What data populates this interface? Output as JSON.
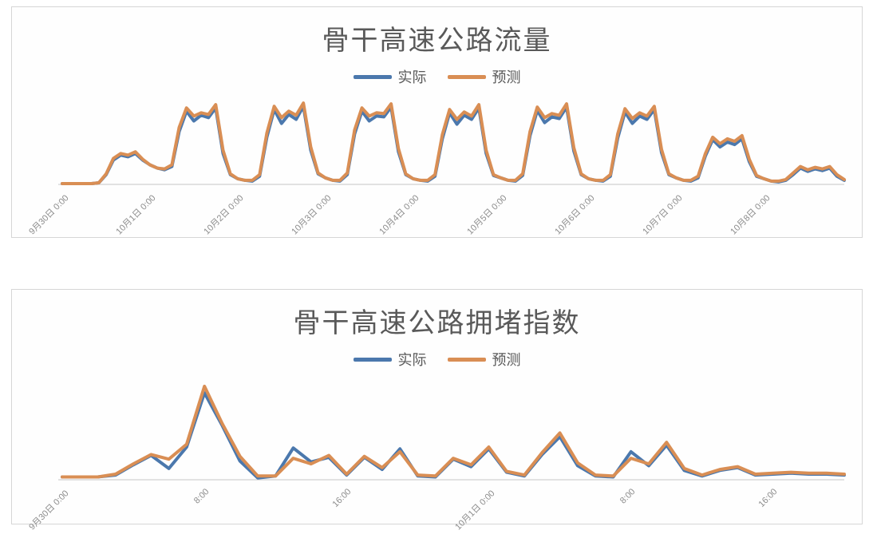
{
  "page": {
    "background": "#ffffff",
    "card_border": "#d6d6d6"
  },
  "chart_data": [
    {
      "type": "line",
      "title": "骨干高速公路流量",
      "legend_position": "top",
      "grid": false,
      "axis_color": "#d9d9d9",
      "tick_color": "#8c8c8c",
      "ylim": [
        0,
        105
      ],
      "step_hours": 2,
      "x_axis": {
        "tick_labels": [
          "9月30日 0:00",
          "10月1日 0:00",
          "10月2日 0:00",
          "10月3日 0:00",
          "10月4日 0:00",
          "10月5日 0:00",
          "10月6日 0:00",
          "10月7日 0:00",
          "10月8日 0:00"
        ],
        "tick_hours": [
          0,
          24,
          48,
          72,
          96,
          120,
          144,
          168,
          192
        ]
      },
      "series": [
        {
          "name": "实际",
          "color": "#4b78ad",
          "values": [
            1,
            1,
            1,
            1,
            1,
            2,
            12,
            30,
            36,
            34,
            38,
            30,
            24,
            20,
            18,
            22,
            65,
            90,
            78,
            85,
            82,
            94,
            38,
            12,
            7,
            5,
            4,
            10,
            58,
            92,
            75,
            86,
            80,
            96,
            42,
            13,
            8,
            5,
            4,
            12,
            62,
            90,
            78,
            84,
            83,
            95,
            40,
            12,
            7,
            5,
            4,
            10,
            56,
            88,
            74,
            85,
            80,
            94,
            38,
            11,
            8,
            5,
            4,
            11,
            60,
            91,
            76,
            83,
            81,
            95,
            41,
            12,
            7,
            5,
            4,
            10,
            57,
            89,
            75,
            84,
            80,
            92,
            39,
            12,
            8,
            5,
            4,
            8,
            35,
            55,
            46,
            52,
            49,
            56,
            28,
            10,
            7,
            4,
            3,
            5,
            12,
            20,
            16,
            19,
            17,
            20,
            10,
            5
          ]
        },
        {
          "name": "预测",
          "color": "#d98e54",
          "values": [
            1,
            1,
            1,
            1,
            1,
            2,
            13,
            32,
            38,
            36,
            40,
            31,
            24,
            20,
            19,
            24,
            70,
            94,
            84,
            88,
            86,
            98,
            42,
            13,
            7,
            5,
            5,
            12,
            63,
            96,
            82,
            90,
            85,
            100,
            46,
            14,
            8,
            5,
            5,
            14,
            67,
            94,
            84,
            88,
            87,
            99,
            44,
            13,
            7,
            5,
            5,
            12,
            61,
            92,
            80,
            89,
            84,
            98,
            42,
            12,
            8,
            5,
            5,
            13,
            65,
            95,
            82,
            87,
            85,
            99,
            45,
            13,
            7,
            5,
            5,
            12,
            62,
            93,
            81,
            88,
            84,
            96,
            43,
            13,
            8,
            5,
            5,
            10,
            38,
            58,
            50,
            56,
            53,
            60,
            31,
            11,
            7,
            4,
            4,
            6,
            14,
            22,
            18,
            21,
            19,
            22,
            12,
            6
          ]
        }
      ]
    },
    {
      "type": "line",
      "title": "骨干高速公路拥堵指数",
      "legend_position": "top",
      "grid": false,
      "axis_color": "#d9d9d9",
      "tick_color": "#8c8c8c",
      "ylim": [
        0,
        10.5
      ],
      "step_hours": 1,
      "x_axis": {
        "tick_labels": [
          "9月30日 0:00",
          "8:00",
          "16:00",
          "10月1日 0:00",
          "8:00",
          "16:00"
        ],
        "tick_hours": [
          0,
          8,
          16,
          24,
          32,
          40
        ]
      },
      "series": [
        {
          "name": "实际",
          "color": "#4b78ad",
          "values": [
            0.3,
            0.3,
            0.3,
            0.5,
            1.6,
            2.6,
            1.2,
            3.5,
            9.3,
            5.8,
            2.0,
            0.2,
            0.4,
            3.4,
            1.9,
            2.4,
            0.5,
            2.4,
            1.1,
            3.3,
            0.4,
            0.3,
            2.2,
            1.4,
            3.3,
            0.8,
            0.4,
            2.7,
            4.6,
            1.5,
            0.4,
            0.3,
            3.0,
            1.5,
            3.7,
            1.0,
            0.4,
            1.0,
            1.3,
            0.5,
            0.6,
            0.7,
            0.6,
            0.6,
            0.5
          ]
        },
        {
          "name": "预测",
          "color": "#d98e54",
          "values": [
            0.3,
            0.3,
            0.3,
            0.6,
            1.7,
            2.7,
            2.2,
            3.8,
            10.0,
            6.0,
            2.5,
            0.4,
            0.4,
            2.3,
            1.7,
            2.6,
            0.6,
            2.5,
            1.3,
            3.0,
            0.5,
            0.4,
            2.3,
            1.6,
            3.5,
            0.9,
            0.5,
            2.9,
            5.0,
            1.8,
            0.5,
            0.4,
            2.3,
            1.7,
            4.0,
            1.2,
            0.5,
            1.1,
            1.4,
            0.6,
            0.7,
            0.8,
            0.7,
            0.7,
            0.6
          ]
        }
      ]
    }
  ]
}
